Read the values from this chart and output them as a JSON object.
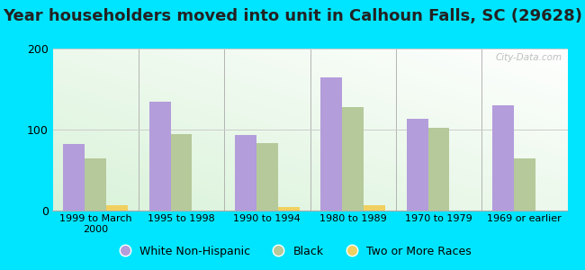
{
  "title": "Year householders moved into unit in Calhoun Falls, SC (29628)",
  "categories": [
    "1999 to March\n2000",
    "1995 to 1998",
    "1990 to 1994",
    "1980 to 1989",
    "1970 to 1979",
    "1969 or earlier"
  ],
  "white_non_hispanic": [
    82,
    135,
    93,
    165,
    113,
    130
  ],
  "black": [
    65,
    95,
    83,
    128,
    102,
    65
  ],
  "two_or_more": [
    7,
    0,
    5,
    7,
    0,
    0
  ],
  "bar_color_white": "#b39ddb",
  "bar_color_black": "#b5c99a",
  "bar_color_two": "#f0d060",
  "background_color": "#00e5ff",
  "ylim": [
    0,
    200
  ],
  "yticks": [
    0,
    100,
    200
  ],
  "watermark": "City-Data.com",
  "legend_labels": [
    "White Non-Hispanic",
    "Black",
    "Two or More Races"
  ],
  "bar_width": 0.25,
  "title_fontsize": 13,
  "tick_fontsize": 8
}
